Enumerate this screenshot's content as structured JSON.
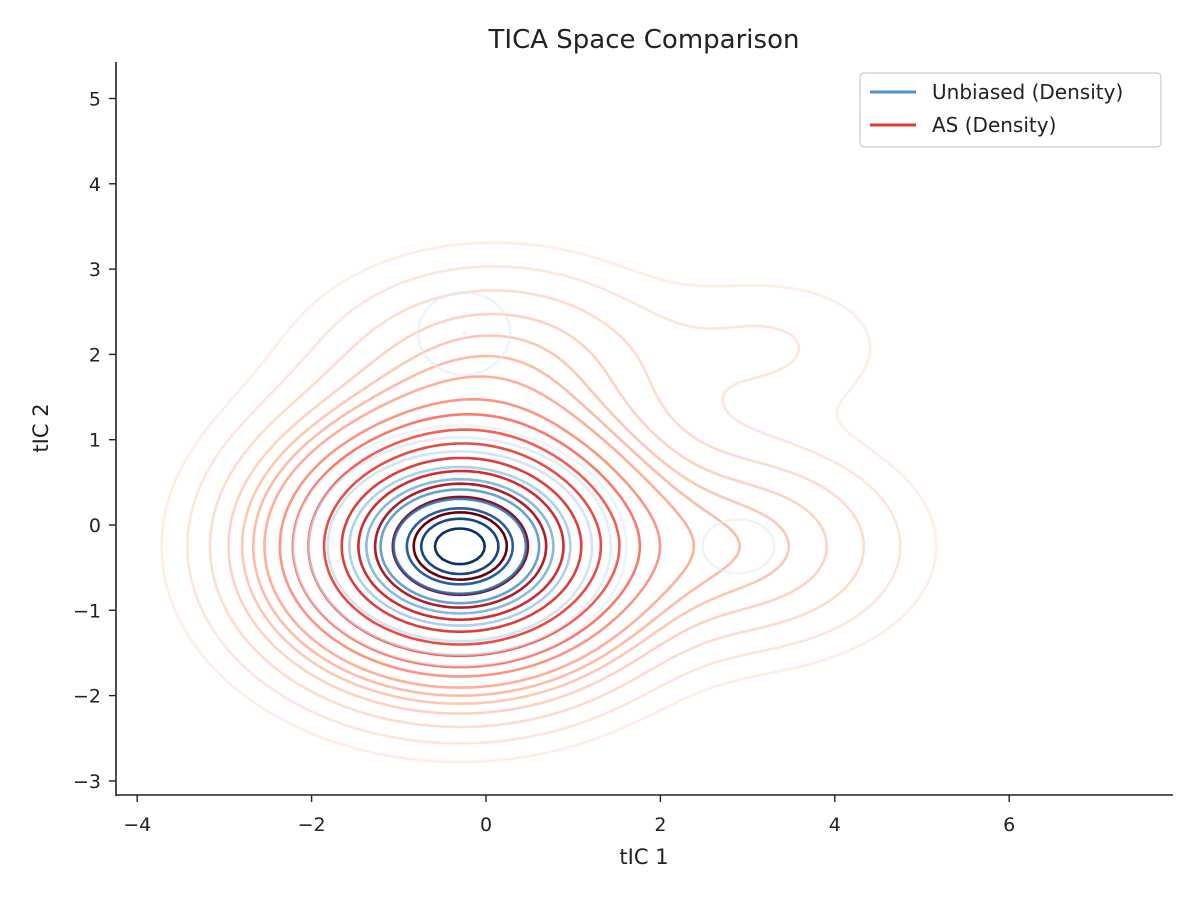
{
  "chart_data": {
    "type": "contour",
    "title": "TICA Space Comparison",
    "xlabel": "tIC 1",
    "ylabel": "tIC 2",
    "xlim": [
      -4.2,
      7.7
    ],
    "ylim": [
      -3.2,
      5.45
    ],
    "xticks": [
      -4,
      -2,
      0,
      2,
      4,
      6
    ],
    "yticks": [
      -3,
      -2,
      -1,
      0,
      1,
      2,
      3,
      4,
      5
    ],
    "grid": false,
    "legend_position": "top-right",
    "series": [
      {
        "name": "Unbiased (Density)",
        "color": "#3a8ac4",
        "components": [
          {
            "cx": -0.3,
            "cy": -0.25,
            "sx": 0.75,
            "sy": 0.55,
            "w": 1.0
          },
          {
            "cx": -0.25,
            "cy": 2.25,
            "sx": 0.5,
            "sy": 0.45,
            "w": 0.07
          },
          {
            "cx": 2.9,
            "cy": -0.25,
            "sx": 0.45,
            "sy": 0.35,
            "w": 0.06
          }
        ],
        "levels": [
          0.04,
          0.07,
          0.13,
          0.24,
          0.36,
          0.48,
          0.6,
          0.72,
          0.84,
          0.93
        ]
      },
      {
        "name": "AS (Density)",
        "color": "#e0402c",
        "components": [
          {
            "cx": -0.3,
            "cy": -0.25,
            "sx": 1.15,
            "sy": 0.85,
            "w": 1.0
          },
          {
            "cx": 0.1,
            "cy": 1.9,
            "sx": 1.15,
            "sy": 0.7,
            "w": 0.09
          },
          {
            "cx": 3.0,
            "cy": -0.25,
            "sx": 1.05,
            "sy": 0.7,
            "w": 0.1
          },
          {
            "cx": 3.3,
            "cy": 2.1,
            "sx": 0.9,
            "sy": 0.55,
            "w": 0.025
          }
        ],
        "levels": [
          0.012,
          0.025,
          0.045,
          0.07,
          0.095,
          0.12,
          0.15,
          0.2,
          0.25,
          0.32,
          0.4,
          0.5,
          0.6,
          0.7,
          0.8,
          0.9
        ]
      }
    ]
  }
}
